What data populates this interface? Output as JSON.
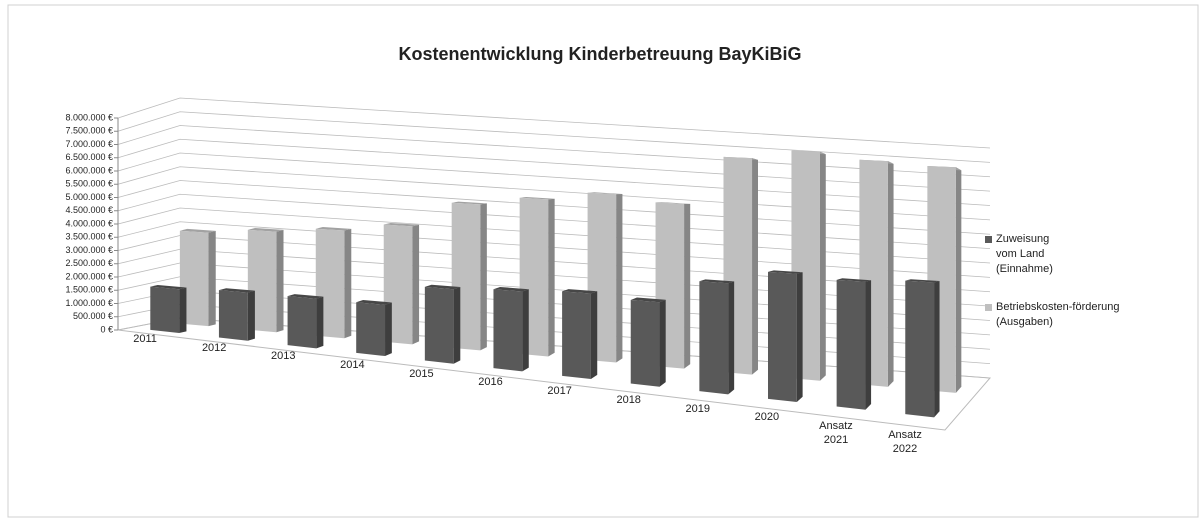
{
  "chart_data": {
    "type": "bar3d",
    "title": "Kostenentwicklung Kinderbetreuung BayKiBiG",
    "categories": [
      "2011",
      "2012",
      "2013",
      "2014",
      "2015",
      "2016",
      "2017",
      "2018",
      "2019",
      "2020",
      "Ansatz 2021",
      "Ansatz 2022"
    ],
    "series": [
      {
        "name": "Zuweisung vom Land (Einnahme)",
        "color": "#595959",
        "values": [
          1600000,
          1700000,
          1700000,
          1700000,
          2400000,
          2500000,
          2600000,
          2500000,
          3200000,
          3600000,
          3500000,
          3600000
        ]
      },
      {
        "name": "Betriebskosten-förderung (Ausgaben)",
        "color": "#bfbfbf",
        "values": [
          3400000,
          3600000,
          3800000,
          4100000,
          5000000,
          5300000,
          5600000,
          5400000,
          7000000,
          7300000,
          7100000,
          7000000
        ]
      }
    ],
    "ylim": [
      0,
      8000000
    ],
    "yticks": [
      {
        "value": 0,
        "label": "0 €"
      },
      {
        "value": 500000,
        "label": "500.000 €"
      },
      {
        "value": 1000000,
        "label": "1.000.000 €"
      },
      {
        "value": 1500000,
        "label": "1.500.000 €"
      },
      {
        "value": 2000000,
        "label": "2.000.000 €"
      },
      {
        "value": 2500000,
        "label": "2.500.000 €"
      },
      {
        "value": 3000000,
        "label": "3.000.000 €"
      },
      {
        "value": 3500000,
        "label": "3.500.000 €"
      },
      {
        "value": 4000000,
        "label": "4.000.000 €"
      },
      {
        "value": 4500000,
        "label": "4.500.000 €"
      },
      {
        "value": 5000000,
        "label": "5.000.000 €"
      },
      {
        "value": 5500000,
        "label": "5.500.000 €"
      },
      {
        "value": 6000000,
        "label": "6.000.000 €"
      },
      {
        "value": 6500000,
        "label": "6.500.000 €"
      },
      {
        "value": 7000000,
        "label": "7.000.000 €"
      },
      {
        "value": 7500000,
        "label": "7.500.000 €"
      },
      {
        "value": 8000000,
        "label": "8.000.000 €"
      }
    ],
    "grid": true,
    "legend": "right"
  }
}
